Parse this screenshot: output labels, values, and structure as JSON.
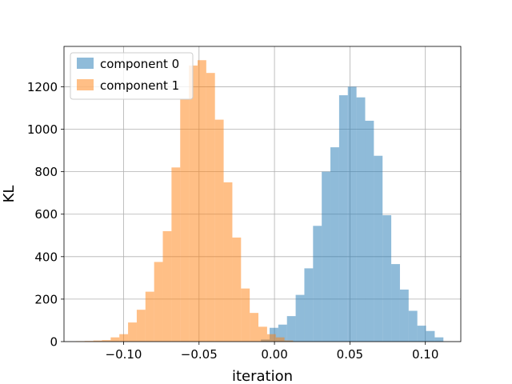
{
  "chart_data": {
    "type": "histogram",
    "title": "",
    "xlabel": "iteration",
    "ylabel": "KL",
    "xlim": [
      -0.1395,
      0.1235
    ],
    "ylim": [
      0,
      1390
    ],
    "xticks": [
      -0.1,
      -0.05,
      0.0,
      0.05,
      0.1
    ],
    "xtick_labels": [
      "−0.10",
      "−0.05",
      "0.00",
      "0.05",
      "0.10"
    ],
    "yticks": [
      0,
      200,
      400,
      600,
      800,
      1000,
      1200
    ],
    "ytick_labels": [
      "0",
      "200",
      "400",
      "600",
      "800",
      "1000",
      "1200"
    ],
    "grid": true,
    "legend_position": "top-left",
    "series": [
      {
        "name": "component 0",
        "color": "#1f77b4",
        "alpha": 0.5,
        "bin_edges": [
          -0.00899,
          -0.00323,
          0.00253,
          0.00829,
          0.01405,
          0.01981,
          0.02557,
          0.03133,
          0.03709,
          0.04285,
          0.04861,
          0.05437,
          0.06013,
          0.06589,
          0.07165,
          0.07741,
          0.08317,
          0.08893,
          0.09469,
          0.10045,
          0.10621,
          0.11197
        ],
        "counts": [
          10,
          65,
          80,
          120,
          220,
          345,
          545,
          800,
          915,
          1160,
          1200,
          1150,
          1040,
          875,
          595,
          365,
          245,
          145,
          75,
          50,
          20
        ]
      },
      {
        "name": "component 1",
        "color": "#ff7f0e",
        "alpha": 0.5,
        "bin_edges": [
          -0.1316,
          -0.12584,
          -0.12008,
          -0.11432,
          -0.10856,
          -0.1028,
          -0.09704,
          -0.09128,
          -0.08552,
          -0.07976,
          -0.074,
          -0.06824,
          -0.06248,
          -0.05672,
          -0.05096,
          -0.0452,
          -0.03944,
          -0.03368,
          -0.02792,
          -0.02216,
          -0.0164,
          -0.01064,
          -0.00488,
          0.00088,
          0.00664,
          0.0124
        ],
        "counts": [
          2,
          3,
          5,
          7,
          20,
          35,
          90,
          150,
          235,
          375,
          520,
          820,
          1140,
          1300,
          1325,
          1265,
          1045,
          750,
          490,
          250,
          135,
          70,
          35,
          20,
          5
        ]
      }
    ]
  }
}
